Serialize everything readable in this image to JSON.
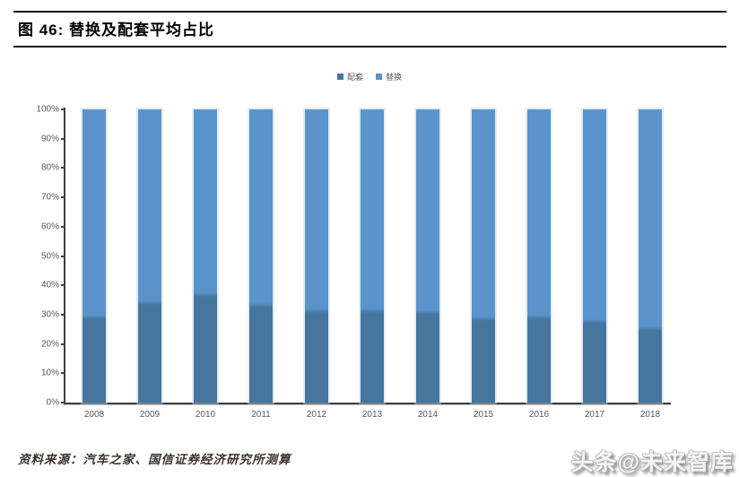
{
  "figure": {
    "title": "图 46:  替换及配套平均占比",
    "source": "资料来源：汽车之家、国信证券经济研究所测算",
    "watermark": "头条@未来智库"
  },
  "chart_data": {
    "type": "bar",
    "stacked": true,
    "orientation": "vertical",
    "categories": [
      "2008",
      "2009",
      "2010",
      "2011",
      "2012",
      "2013",
      "2014",
      "2015",
      "2016",
      "2017",
      "2018"
    ],
    "series": [
      {
        "name": "配套",
        "color": "#46759E",
        "values": [
          30,
          35,
          37.5,
          34,
          32,
          32,
          31.5,
          29.5,
          30,
          28.5,
          26
        ]
      },
      {
        "name": "替换",
        "color": "#5B94CC",
        "values": [
          70,
          65,
          62.5,
          66,
          68,
          68,
          68.5,
          70.5,
          70,
          71.5,
          74
        ]
      }
    ],
    "title": "替换及配套平均占比",
    "xlabel": "",
    "ylabel": "",
    "ylim": [
      0,
      100
    ],
    "y_ticks": [
      "0%",
      "10%",
      "20%",
      "30%",
      "40%",
      "50%",
      "60%",
      "70%",
      "80%",
      "90%",
      "100%"
    ],
    "y_tick_step": 10,
    "grid": false,
    "legend_position": "top",
    "axis_color": "#3f3f3f",
    "tick_label_color": "#595959"
  }
}
